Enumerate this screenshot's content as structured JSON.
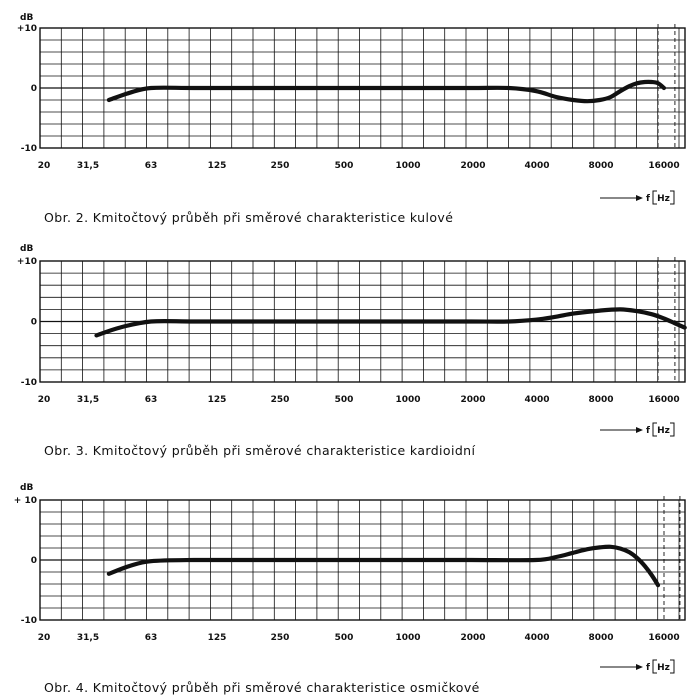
{
  "chart_data": [
    {
      "type": "line",
      "title": "Obr. 2. Kmitočtový průběh při směrové charakteristice kulové",
      "ylabel": "dB",
      "xlabel": "f [Hz]",
      "x_unit_text": "f",
      "x_unit_box": "Hz",
      "ylim": [
        -10,
        10
      ],
      "yticks": [
        "+10",
        "0",
        "-10"
      ],
      "xticks": [
        "20",
        "31,5",
        "63",
        "125",
        "250",
        "500",
        "1000",
        "2000",
        "4000",
        "8000",
        "16000"
      ],
      "marked_frequencies": [
        15000,
        18000
      ],
      "series": [
        {
          "name": "kulová",
          "x": [
            40,
            50,
            63,
            100,
            200,
            500,
            1000,
            2000,
            3000,
            4000,
            5000,
            6000,
            7000,
            8000,
            9000,
            10000,
            11000,
            12000,
            13000,
            14000,
            15000,
            16000
          ],
          "y": [
            -2,
            -0.8,
            0,
            0,
            0,
            0,
            0,
            0,
            0,
            -0.5,
            -1.5,
            -2,
            -2.2,
            -2,
            -1.5,
            -0.5,
            0.3,
            0.8,
            1,
            1,
            0.8,
            0
          ]
        }
      ]
    },
    {
      "type": "line",
      "title": "Obr. 3. Kmitočtový průběh při směrové charakteristice kardioidní",
      "ylabel": "dB",
      "xlabel": "f [Hz]",
      "x_unit_text": "f",
      "x_unit_box": "Hz",
      "ylim": [
        -10,
        10
      ],
      "yticks": [
        "+10",
        "0",
        "-10"
      ],
      "xticks": [
        "20",
        "31,5",
        "63",
        "125",
        "250",
        "500",
        "1000",
        "2000",
        "4000",
        "8000",
        "16000"
      ],
      "marked_frequencies": [
        15000,
        18000
      ],
      "series": [
        {
          "name": "kardioidní",
          "x": [
            35,
            45,
            63,
            100,
            200,
            500,
            1000,
            2000,
            3000,
            4000,
            5000,
            6000,
            8000,
            10000,
            12000,
            14000,
            16000,
            18000,
            20000
          ],
          "y": [
            -2.3,
            -1,
            0,
            0,
            0,
            0,
            0,
            0,
            0,
            0.3,
            0.8,
            1.3,
            1.8,
            2,
            1.7,
            1.2,
            0.5,
            -0.3,
            -1
          ]
        }
      ]
    },
    {
      "type": "line",
      "title": "Obr. 4. Kmitočtový průběh při směrové charakteristice osmičkové",
      "ylabel": "dB",
      "xlabel": "f [Hz]",
      "x_unit_text": "f",
      "x_unit_box": "Hz",
      "ylim": [
        -10,
        10
      ],
      "yticks": [
        "+ 10",
        "0",
        "-10"
      ],
      "xticks": [
        "20",
        "31,5",
        "63",
        "125",
        "250",
        "500",
        "1000",
        "2000",
        "4000",
        "8000",
        "16000"
      ],
      "marked_frequencies": [
        16000,
        19000
      ],
      "series": [
        {
          "name": "osmičková",
          "x": [
            40,
            50,
            63,
            100,
            200,
            500,
            1000,
            2000,
            4000,
            5000,
            6000,
            7000,
            8000,
            9000,
            10000,
            11000,
            12000,
            13000,
            14000,
            15000
          ],
          "y": [
            -2.3,
            -1,
            -0.2,
            0,
            0,
            0,
            0,
            0,
            0,
            0.5,
            1.2,
            1.8,
            2.1,
            2.2,
            1.9,
            1.3,
            0.3,
            -1,
            -2.5,
            -4.2
          ]
        }
      ]
    }
  ]
}
